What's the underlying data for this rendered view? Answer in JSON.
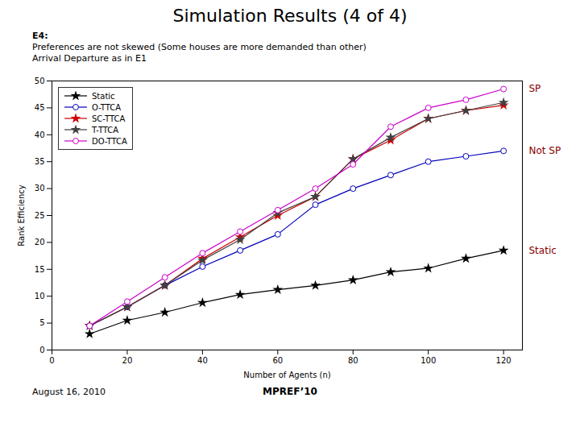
{
  "chart_data": {
    "type": "line",
    "title": "Simulation Results (4 of 4)",
    "subtitle": [
      "E4:",
      "Preferences are not skewed (Some houses are more demanded than other)",
      "Arrival Departure as in E1"
    ],
    "footer": [
      "August 16, 2010",
      "MPREF’10"
    ],
    "xlabel": "Number of Agents (n)",
    "ylabel": "Rank Efficiency",
    "x": [
      10,
      20,
      30,
      40,
      50,
      60,
      70,
      80,
      90,
      100,
      110,
      120
    ],
    "series": [
      {
        "name": "Static",
        "color": "#000000",
        "marker": "star",
        "values": [
          3.0,
          5.5,
          7.0,
          8.8,
          10.3,
          11.2,
          12.0,
          13.0,
          14.5,
          15.2,
          17.0,
          18.5
        ]
      },
      {
        "name": "O-TTCA",
        "color": "#0000bb",
        "marker": "open_circle",
        "values": [
          4.5,
          8.0,
          12.0,
          15.5,
          18.5,
          21.5,
          27.0,
          30.0,
          32.5,
          35.0,
          36.0,
          37.0
        ]
      },
      {
        "name": "SC-TTCA",
        "color": "#cc0000",
        "marker": "star",
        "values": [
          4.5,
          8.0,
          12.0,
          17.0,
          21.0,
          25.0,
          28.5,
          35.5,
          39.0,
          43.0,
          44.5,
          45.5
        ]
      },
      {
        "name": "T-TTCA",
        "color": "#404040",
        "marker": "star",
        "values": [
          4.5,
          8.0,
          12.0,
          16.7,
          20.5,
          25.5,
          28.5,
          35.5,
          39.5,
          43.0,
          44.5,
          46.0
        ]
      },
      {
        "name": "DO-TTCA",
        "color": "#cc00cc",
        "marker": "open_circle",
        "values": [
          4.5,
          9.0,
          13.5,
          18.0,
          22.0,
          26.0,
          30.0,
          34.5,
          41.5,
          45.0,
          46.5,
          48.5
        ]
      }
    ],
    "annotations": [
      {
        "text": "SP",
        "y": 48.5,
        "color": "#880000"
      },
      {
        "text": "Not SP",
        "y": 37.0,
        "color": "#880000"
      },
      {
        "text": "Static",
        "y": 18.5,
        "color": "#880000"
      }
    ],
    "xlim": [
      0,
      125
    ],
    "ylim": [
      0,
      50
    ],
    "xticks": [
      0,
      20,
      40,
      60,
      80,
      100,
      120
    ],
    "yticks": [
      0,
      5,
      10,
      15,
      20,
      25,
      30,
      35,
      40,
      45,
      50
    ],
    "grid": false,
    "legend": "upper left"
  }
}
